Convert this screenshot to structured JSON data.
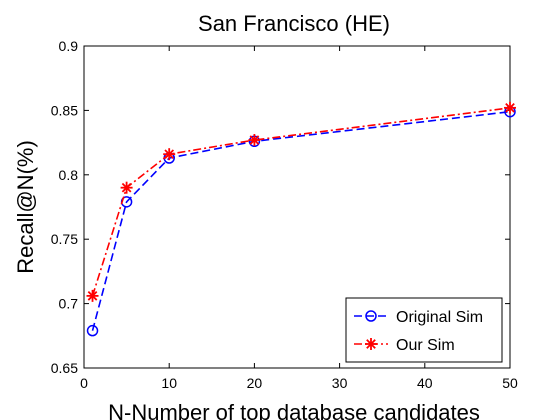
{
  "chart_data": {
    "type": "line",
    "title": "San Francisco (HE)",
    "xlabel": "N-Number of top database candidates",
    "ylabel": "Recall@N(%)",
    "xlim": [
      0,
      50
    ],
    "ylim": [
      0.65,
      0.9
    ],
    "xticks": [
      "0",
      "10",
      "20",
      "30",
      "40",
      "50"
    ],
    "yticks": [
      "0.65",
      "0.7",
      "0.75",
      "0.8",
      "0.85",
      "0.9"
    ],
    "grid": false,
    "legend_position": "bottom-right",
    "x": [
      1,
      5,
      10,
      20,
      50
    ],
    "series": [
      {
        "name": "Original Sim",
        "color": "#0000ff",
        "marker": "circle",
        "linestyle": "dashed",
        "values": [
          0.679,
          0.779,
          0.813,
          0.826,
          0.849
        ]
      },
      {
        "name": "Our Sim",
        "color": "#ff0000",
        "marker": "star",
        "linestyle": "dashdot",
        "values": [
          0.706,
          0.79,
          0.816,
          0.827,
          0.852
        ]
      }
    ]
  }
}
